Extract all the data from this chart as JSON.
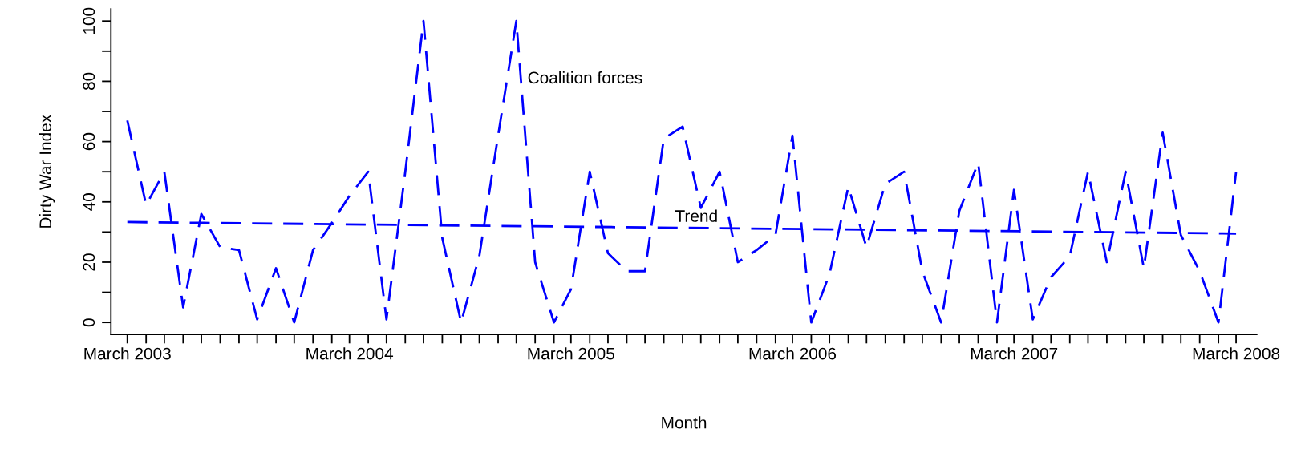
{
  "chart_data": {
    "type": "line",
    "xlabel": "Month",
    "ylabel": "Dirty War Index",
    "x": [
      "2003-03",
      "2003-04",
      "2003-05",
      "2003-06",
      "2003-07",
      "2003-08",
      "2003-09",
      "2003-10",
      "2003-11",
      "2003-12",
      "2004-01",
      "2004-02",
      "2004-03",
      "2004-04",
      "2004-05",
      "2004-06",
      "2004-07",
      "2004-08",
      "2004-09",
      "2004-10",
      "2004-11",
      "2004-12",
      "2005-01",
      "2005-02",
      "2005-03",
      "2005-04",
      "2005-05",
      "2005-06",
      "2005-07",
      "2005-08",
      "2005-09",
      "2005-10",
      "2005-11",
      "2005-12",
      "2006-01",
      "2006-02",
      "2006-03",
      "2006-04",
      "2006-05",
      "2006-06",
      "2006-07",
      "2006-08",
      "2006-09",
      "2006-10",
      "2006-11",
      "2006-12",
      "2007-01",
      "2007-02",
      "2007-03",
      "2007-04",
      "2007-05",
      "2007-06",
      "2007-07",
      "2007-08",
      "2007-09",
      "2007-10",
      "2007-11",
      "2007-12",
      "2008-01",
      "2008-02",
      "2008-03"
    ],
    "series": [
      {
        "color": "#0000ff",
        "values": [
          67,
          39,
          50,
          5,
          36,
          25,
          24,
          1,
          18,
          0,
          24,
          33,
          42,
          50,
          1,
          50,
          100,
          28,
          0,
          22,
          62,
          100,
          20,
          0,
          11,
          50,
          23,
          17,
          17,
          61,
          65,
          38,
          50,
          20,
          24,
          29,
          62,
          0,
          16,
          45,
          25,
          46,
          50,
          17,
          0,
          37,
          53,
          0,
          44,
          1,
          15,
          22,
          50,
          20,
          50,
          18,
          63,
          29,
          17,
          0,
          50
        ]
      },
      {
        "color": "#0000ff",
        "x": [
          "2003-03",
          "2008-03"
        ],
        "values": [
          33.3,
          29.5
        ]
      }
    ],
    "line_style": "dashed",
    "marker": "none",
    "legend": false,
    "grid": false,
    "xlim": [
      "2003-02-02",
      "2008-04-04"
    ],
    "ylim": [
      -4,
      104
    ],
    "xticks": [
      {
        "value": "2003-03",
        "label": "March 2003"
      },
      {
        "value": "2003-04",
        "label": null
      },
      {
        "value": "2003-05",
        "label": null
      },
      {
        "value": "2003-06",
        "label": null
      },
      {
        "value": "2003-07",
        "label": null
      },
      {
        "value": "2003-08",
        "label": null
      },
      {
        "value": "2003-09",
        "label": null
      },
      {
        "value": "2003-10",
        "label": null
      },
      {
        "value": "2003-11",
        "label": null
      },
      {
        "value": "2003-12",
        "label": null
      },
      {
        "value": "2004-01",
        "label": null
      },
      {
        "value": "2004-02",
        "label": null
      },
      {
        "value": "2004-03",
        "label": "March 2004"
      },
      {
        "value": "2004-04",
        "label": null
      },
      {
        "value": "2004-05",
        "label": null
      },
      {
        "value": "2004-06",
        "label": null
      },
      {
        "value": "2004-07",
        "label": null
      },
      {
        "value": "2004-08",
        "label": null
      },
      {
        "value": "2004-09",
        "label": null
      },
      {
        "value": "2004-10",
        "label": null
      },
      {
        "value": "2004-11",
        "label": null
      },
      {
        "value": "2004-12",
        "label": null
      },
      {
        "value": "2005-01",
        "label": null
      },
      {
        "value": "2005-02",
        "label": null
      },
      {
        "value": "2005-03",
        "label": "March 2005"
      },
      {
        "value": "2005-04",
        "label": null
      },
      {
        "value": "2005-05",
        "label": null
      },
      {
        "value": "2005-06",
        "label": null
      },
      {
        "value": "2005-07",
        "label": null
      },
      {
        "value": "2005-08",
        "label": null
      },
      {
        "value": "2005-09",
        "label": null
      },
      {
        "value": "2005-10",
        "label": null
      },
      {
        "value": "2005-11",
        "label": null
      },
      {
        "value": "2005-12",
        "label": null
      },
      {
        "value": "2006-01",
        "label": null
      },
      {
        "value": "2006-02",
        "label": null
      },
      {
        "value": "2006-03",
        "label": "March 2006"
      },
      {
        "value": "2006-04",
        "label": null
      },
      {
        "value": "2006-05",
        "label": null
      },
      {
        "value": "2006-06",
        "label": null
      },
      {
        "value": "2006-07",
        "label": null
      },
      {
        "value": "2006-08",
        "label": null
      },
      {
        "value": "2006-09",
        "label": null
      },
      {
        "value": "2006-10",
        "label": null
      },
      {
        "value": "2006-11",
        "label": null
      },
      {
        "value": "2006-12",
        "label": null
      },
      {
        "value": "2007-01",
        "label": null
      },
      {
        "value": "2007-02",
        "label": null
      },
      {
        "value": "2007-03",
        "label": "March 2007"
      },
      {
        "value": "2007-04",
        "label": null
      },
      {
        "value": "2007-05",
        "label": null
      },
      {
        "value": "2007-06",
        "label": null
      },
      {
        "value": "2007-07",
        "label": null
      },
      {
        "value": "2007-08",
        "label": null
      },
      {
        "value": "2007-09",
        "label": null
      },
      {
        "value": "2007-10",
        "label": null
      },
      {
        "value": "2007-11",
        "label": null
      },
      {
        "value": "2007-12",
        "label": null
      },
      {
        "value": "2008-01",
        "label": null
      },
      {
        "value": "2008-02",
        "label": null
      },
      {
        "value": "2008-03",
        "label": "March 2008"
      }
    ],
    "yticks": [
      0,
      {
        "value": 10,
        "label": null
      },
      20,
      {
        "value": 30,
        "label": null
      },
      40,
      {
        "value": 50,
        "label": null
      },
      60,
      {
        "value": 70,
        "label": null
      },
      80,
      {
        "value": 90,
        "label": null
      },
      100
    ],
    "annotations": [
      {
        "text": "Coalition forces",
        "x": "2004-12",
        "y": 80
      },
      {
        "text": "Trend",
        "x": "2005-08",
        "y": 31.5
      }
    ]
  }
}
